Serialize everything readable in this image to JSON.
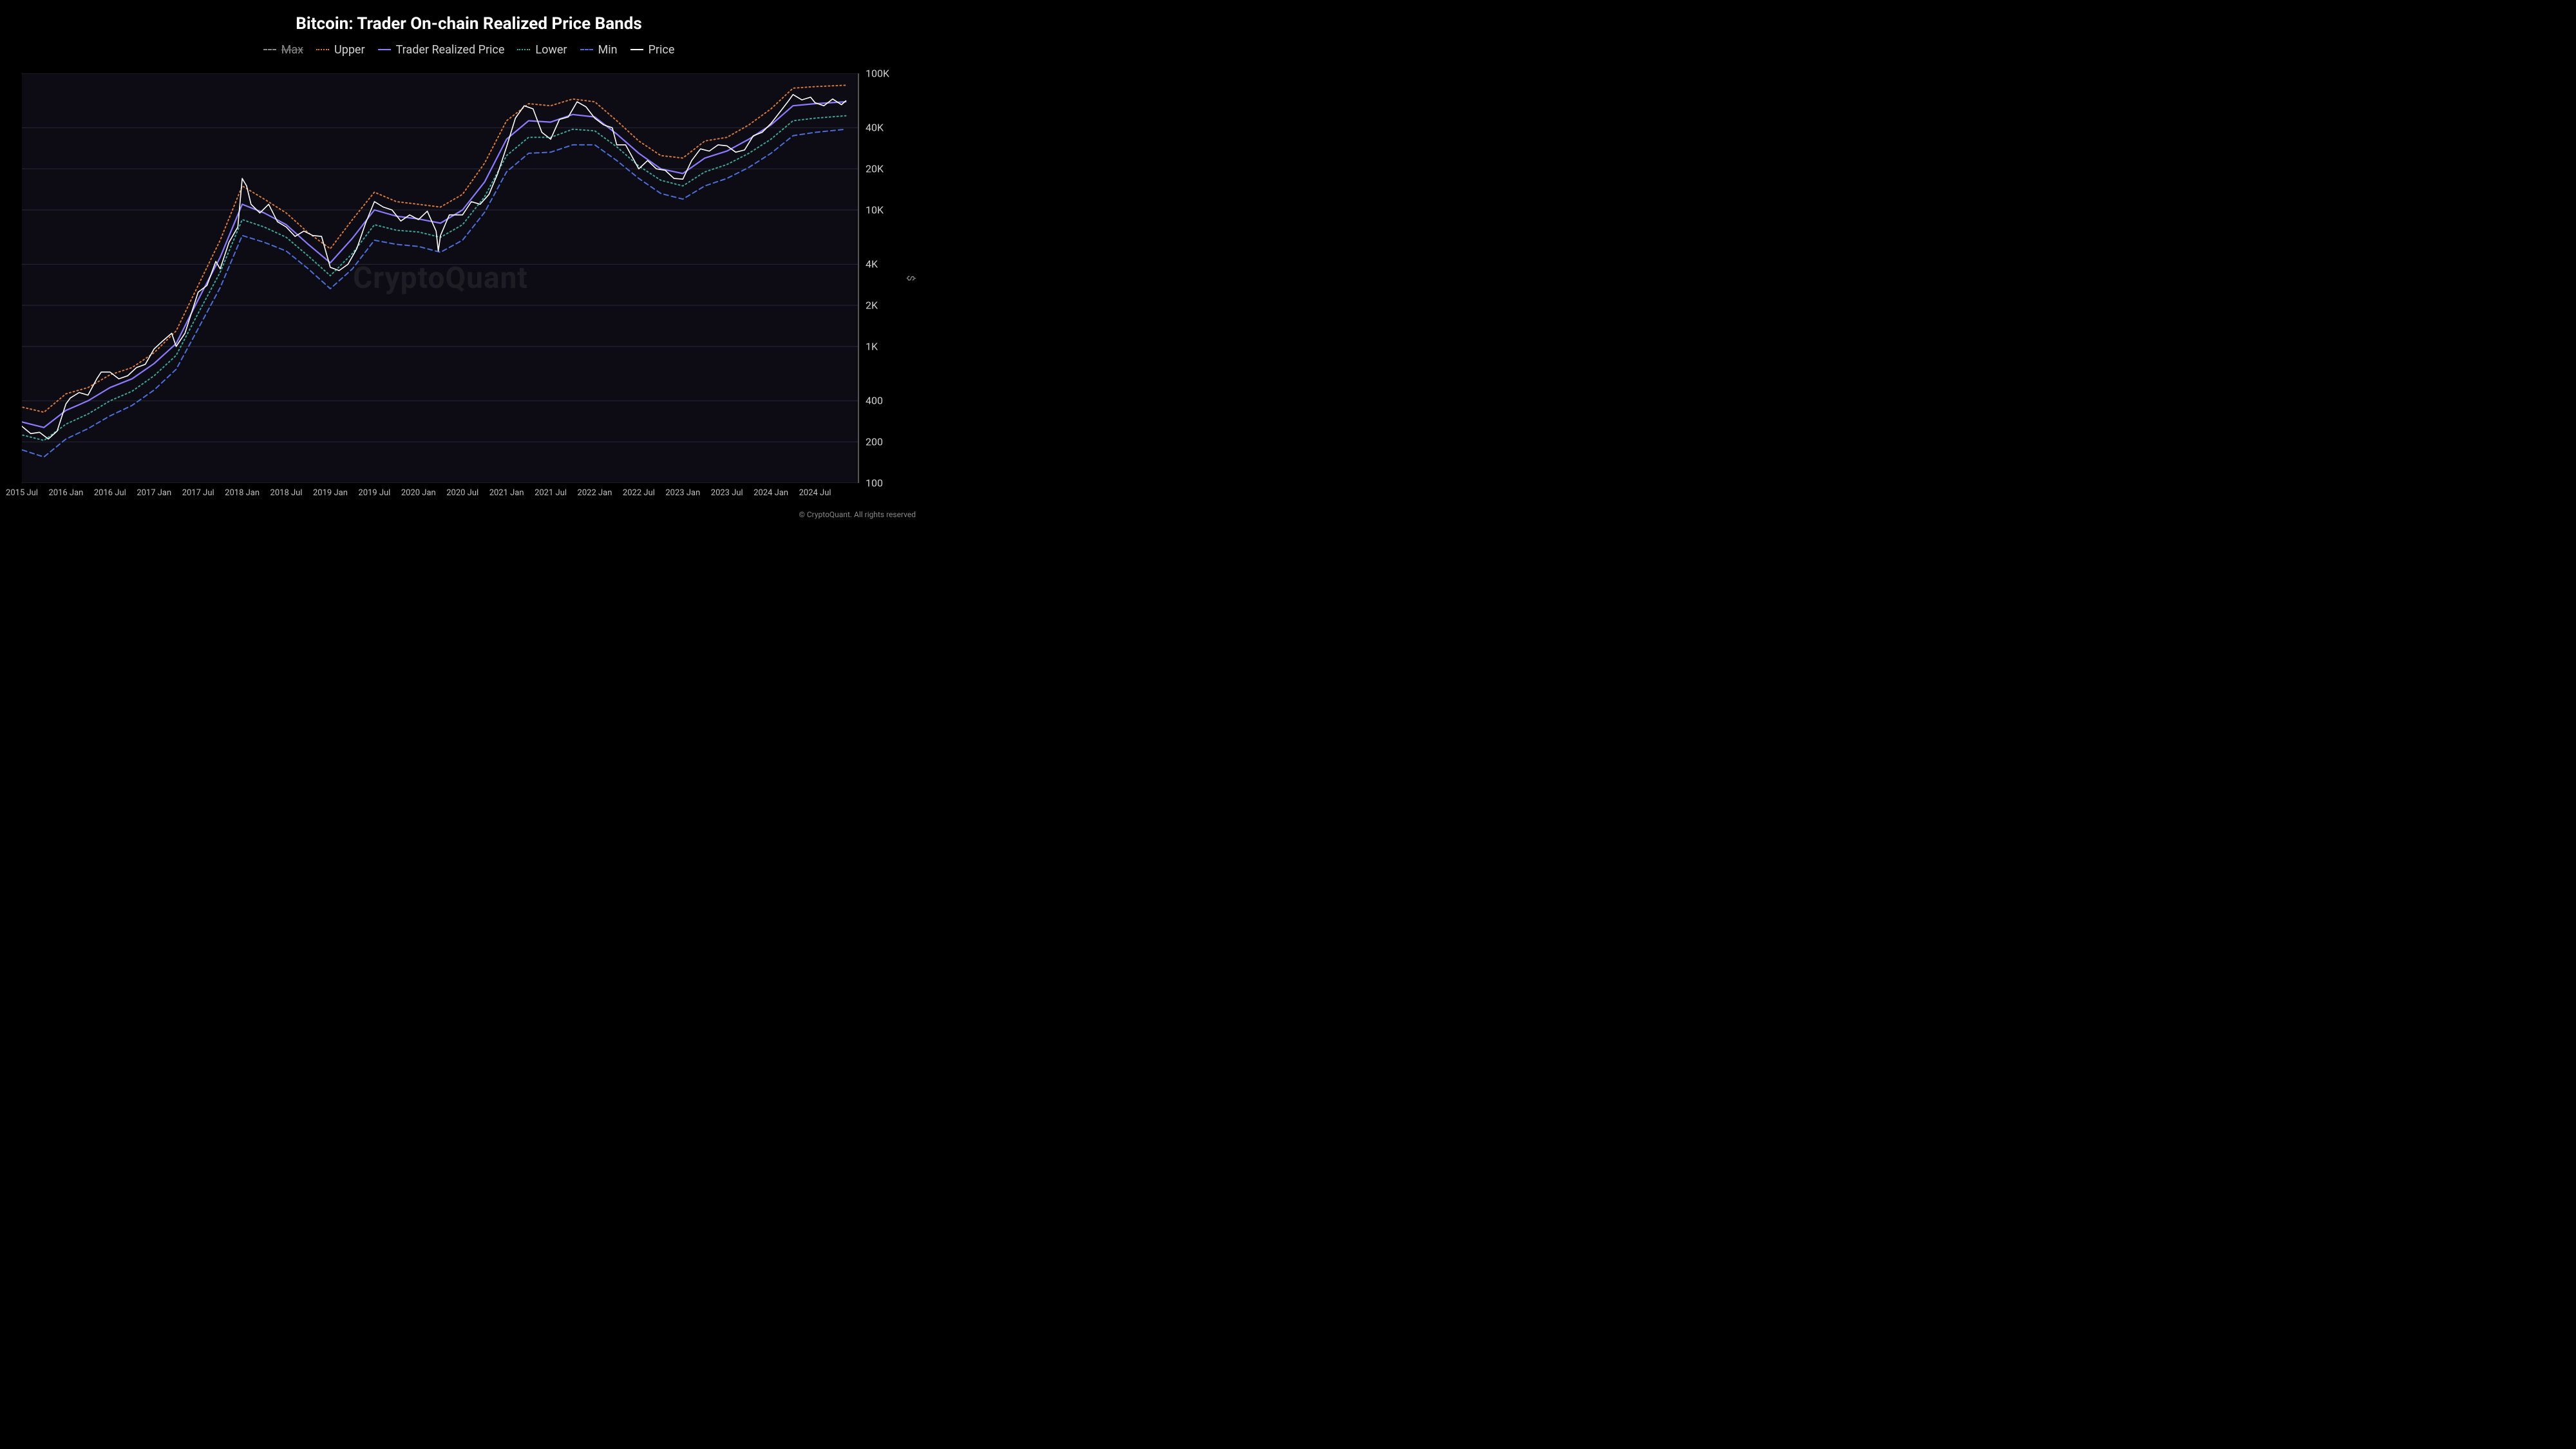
{
  "title": "Bitcoin: Trader On-chain Realized Price Bands",
  "watermark": "CryptoQuant",
  "copyright": "© CryptoQuant. All rights reserved",
  "y_axis_label": "$",
  "background_color": "#000000",
  "plot_background": "#0d0b14",
  "grid_color": "#2a2833",
  "chart": {
    "type": "line",
    "scale": "log",
    "y_min": 100,
    "y_max": 100000,
    "y_ticks": [
      {
        "v": 100,
        "label": "100"
      },
      {
        "v": 200,
        "label": "200"
      },
      {
        "v": 400,
        "label": "400"
      },
      {
        "v": 1000,
        "label": "1K"
      },
      {
        "v": 2000,
        "label": "2K"
      },
      {
        "v": 4000,
        "label": "4K"
      },
      {
        "v": 10000,
        "label": "10K"
      },
      {
        "v": 20000,
        "label": "20K"
      },
      {
        "v": 40000,
        "label": "40K"
      },
      {
        "v": 100000,
        "label": "100K"
      }
    ],
    "x_min": 0,
    "x_max": 19,
    "x_ticks": [
      {
        "v": 0,
        "label": "2015 Jul"
      },
      {
        "v": 1,
        "label": "2016 Jan"
      },
      {
        "v": 2,
        "label": "2016 Jul"
      },
      {
        "v": 3,
        "label": "2017 Jan"
      },
      {
        "v": 4,
        "label": "2017 Jul"
      },
      {
        "v": 5,
        "label": "2018 Jan"
      },
      {
        "v": 6,
        "label": "2018 Jul"
      },
      {
        "v": 7,
        "label": "2019 Jan"
      },
      {
        "v": 8,
        "label": "2019 Jul"
      },
      {
        "v": 9,
        "label": "2020 Jan"
      },
      {
        "v": 10,
        "label": "2020 Jul"
      },
      {
        "v": 11,
        "label": "2021 Jan"
      },
      {
        "v": 12,
        "label": "2021 Jul"
      },
      {
        "v": 13,
        "label": "2022 Jan"
      },
      {
        "v": 14,
        "label": "2022 Jul"
      },
      {
        "v": 15,
        "label": "2023 Jan"
      },
      {
        "v": 16,
        "label": "2023 Jul"
      },
      {
        "v": 17,
        "label": "2024 Jan"
      },
      {
        "v": 18,
        "label": "2024 Jul"
      }
    ],
    "legend": [
      {
        "key": "max",
        "label": "Max",
        "color": "#888888",
        "dash": "6,5",
        "disabled": true,
        "width": 2
      },
      {
        "key": "upper",
        "label": "Upper",
        "color": "#d97a3a",
        "dash": "2,4",
        "disabled": false,
        "width": 2
      },
      {
        "key": "trader",
        "label": "Trader Realized Price",
        "color": "#8a7bff",
        "dash": "",
        "disabled": false,
        "width": 2.2
      },
      {
        "key": "lower",
        "label": "Lower",
        "color": "#3aa89a",
        "dash": "2,4",
        "disabled": false,
        "width": 2
      },
      {
        "key": "min",
        "label": "Min",
        "color": "#4a6fd8",
        "dash": "7,5",
        "disabled": false,
        "width": 2
      },
      {
        "key": "price",
        "label": "Price",
        "color": "#ffffff",
        "dash": "",
        "disabled": false,
        "width": 1.6
      }
    ],
    "series": {
      "upper": [
        [
          -0.5,
          380
        ],
        [
          0,
          360
        ],
        [
          0.5,
          330
        ],
        [
          1,
          450
        ],
        [
          1.5,
          500
        ],
        [
          2,
          620
        ],
        [
          2.5,
          700
        ],
        [
          3,
          900
        ],
        [
          3.5,
          1300
        ],
        [
          4,
          2800
        ],
        [
          4.5,
          6000
        ],
        [
          5,
          15000
        ],
        [
          5.5,
          12000
        ],
        [
          6,
          9500
        ],
        [
          6.5,
          6800
        ],
        [
          7,
          5200
        ],
        [
          7.5,
          8500
        ],
        [
          8,
          13500
        ],
        [
          8.5,
          11500
        ],
        [
          9,
          11000
        ],
        [
          9.5,
          10500
        ],
        [
          10,
          13000
        ],
        [
          10.5,
          22000
        ],
        [
          11,
          45000
        ],
        [
          11.5,
          60000
        ],
        [
          12,
          58000
        ],
        [
          12.5,
          65000
        ],
        [
          13,
          62000
        ],
        [
          13.5,
          45000
        ],
        [
          14,
          32000
        ],
        [
          14.5,
          25000
        ],
        [
          15,
          24000
        ],
        [
          15.5,
          32000
        ],
        [
          16,
          34000
        ],
        [
          16.5,
          42000
        ],
        [
          17,
          55000
        ],
        [
          17.5,
          78000
        ],
        [
          18,
          80000
        ],
        [
          18.7,
          82000
        ]
      ],
      "trader": [
        [
          -0.5,
          300
        ],
        [
          0,
          280
        ],
        [
          0.5,
          255
        ],
        [
          1,
          340
        ],
        [
          1.5,
          400
        ],
        [
          2,
          500
        ],
        [
          2.5,
          580
        ],
        [
          3,
          750
        ],
        [
          3.5,
          1050
        ],
        [
          4,
          2200
        ],
        [
          4.5,
          4500
        ],
        [
          5,
          11000
        ],
        [
          5.5,
          9500
        ],
        [
          6,
          7800
        ],
        [
          6.5,
          5600
        ],
        [
          7,
          4100
        ],
        [
          7.5,
          6200
        ],
        [
          8,
          10000
        ],
        [
          8.5,
          9000
        ],
        [
          9,
          8600
        ],
        [
          9.5,
          8000
        ],
        [
          10,
          10000
        ],
        [
          10.5,
          16000
        ],
        [
          11,
          33000
        ],
        [
          11.5,
          45000
        ],
        [
          12,
          44000
        ],
        [
          12.5,
          50000
        ],
        [
          13,
          48000
        ],
        [
          13.5,
          36000
        ],
        [
          14,
          26000
        ],
        [
          14.5,
          20000
        ],
        [
          15,
          18500
        ],
        [
          15.5,
          24000
        ],
        [
          16,
          27000
        ],
        [
          16.5,
          33000
        ],
        [
          17,
          42000
        ],
        [
          17.5,
          58000
        ],
        [
          18,
          60000
        ],
        [
          18.7,
          62000
        ]
      ],
      "lower": [
        [
          -0.5,
          240
        ],
        [
          0,
          225
        ],
        [
          0.5,
          205
        ],
        [
          1,
          270
        ],
        [
          1.5,
          320
        ],
        [
          2,
          400
        ],
        [
          2.5,
          470
        ],
        [
          3,
          610
        ],
        [
          3.5,
          860
        ],
        [
          4,
          1750
        ],
        [
          4.5,
          3500
        ],
        [
          5,
          8500
        ],
        [
          5.5,
          7500
        ],
        [
          6,
          6300
        ],
        [
          6.5,
          4600
        ],
        [
          7,
          3300
        ],
        [
          7.5,
          4800
        ],
        [
          8,
          7800
        ],
        [
          8.5,
          7100
        ],
        [
          9,
          6900
        ],
        [
          9.5,
          6300
        ],
        [
          10,
          7800
        ],
        [
          10.5,
          12500
        ],
        [
          11,
          25000
        ],
        [
          11.5,
          34000
        ],
        [
          12,
          34000
        ],
        [
          12.5,
          39000
        ],
        [
          13,
          38000
        ],
        [
          13.5,
          29000
        ],
        [
          14,
          21000
        ],
        [
          14.5,
          16500
        ],
        [
          15,
          15000
        ],
        [
          15.5,
          19000
        ],
        [
          16,
          21500
        ],
        [
          16.5,
          26000
        ],
        [
          17,
          33000
        ],
        [
          17.5,
          45000
        ],
        [
          18,
          47000
        ],
        [
          18.7,
          49000
        ]
      ],
      "min": [
        [
          -0.5,
          190
        ],
        [
          0,
          175
        ],
        [
          0.5,
          155
        ],
        [
          1,
          210
        ],
        [
          1.5,
          250
        ],
        [
          2,
          310
        ],
        [
          2.5,
          370
        ],
        [
          3,
          480
        ],
        [
          3.5,
          680
        ],
        [
          4,
          1350
        ],
        [
          4.5,
          2700
        ],
        [
          5,
          6500
        ],
        [
          5.5,
          5800
        ],
        [
          6,
          5000
        ],
        [
          6.5,
          3700
        ],
        [
          7,
          2650
        ],
        [
          7.5,
          3700
        ],
        [
          8,
          6000
        ],
        [
          8.5,
          5600
        ],
        [
          9,
          5400
        ],
        [
          9.5,
          4900
        ],
        [
          10,
          6000
        ],
        [
          10.5,
          9600
        ],
        [
          11,
          19000
        ],
        [
          11.5,
          26000
        ],
        [
          12,
          26500
        ],
        [
          12.5,
          30000
        ],
        [
          13,
          30000
        ],
        [
          13.5,
          23000
        ],
        [
          14,
          17000
        ],
        [
          14.5,
          13200
        ],
        [
          15,
          12000
        ],
        [
          15.5,
          15000
        ],
        [
          16,
          17000
        ],
        [
          16.5,
          20500
        ],
        [
          17,
          26000
        ],
        [
          17.5,
          35000
        ],
        [
          18,
          37000
        ],
        [
          18.7,
          39000
        ]
      ],
      "price": [
        [
          -0.5,
          280
        ],
        [
          -0.3,
          250
        ],
        [
          -0.1,
          290
        ],
        [
          0,
          260
        ],
        [
          0.2,
          230
        ],
        [
          0.4,
          235
        ],
        [
          0.6,
          210
        ],
        [
          0.8,
          240
        ],
        [
          1,
          380
        ],
        [
          1.1,
          420
        ],
        [
          1.3,
          460
        ],
        [
          1.5,
          440
        ],
        [
          1.7,
          580
        ],
        [
          1.8,
          650
        ],
        [
          2,
          650
        ],
        [
          2.2,
          580
        ],
        [
          2.4,
          610
        ],
        [
          2.6,
          700
        ],
        [
          2.8,
          740
        ],
        [
          3,
          960
        ],
        [
          3.2,
          1100
        ],
        [
          3.4,
          1250
        ],
        [
          3.5,
          1000
        ],
        [
          3.7,
          1250
        ],
        [
          4,
          2500
        ],
        [
          4.2,
          2800
        ],
        [
          4.4,
          4200
        ],
        [
          4.5,
          3700
        ],
        [
          4.7,
          5800
        ],
        [
          4.9,
          7500
        ],
        [
          5,
          17000
        ],
        [
          5.1,
          15000
        ],
        [
          5.2,
          11000
        ],
        [
          5.4,
          9500
        ],
        [
          5.6,
          11000
        ],
        [
          5.8,
          8200
        ],
        [
          6,
          7500
        ],
        [
          6.2,
          6400
        ],
        [
          6.4,
          7000
        ],
        [
          6.6,
          6500
        ],
        [
          6.8,
          6400
        ],
        [
          7,
          3800
        ],
        [
          7.2,
          3600
        ],
        [
          7.4,
          4000
        ],
        [
          7.6,
          5200
        ],
        [
          7.8,
          8000
        ],
        [
          8,
          11500
        ],
        [
          8.2,
          10500
        ],
        [
          8.4,
          10000
        ],
        [
          8.6,
          8300
        ],
        [
          8.8,
          9200
        ],
        [
          9,
          8500
        ],
        [
          9.2,
          9800
        ],
        [
          9.4,
          7000
        ],
        [
          9.45,
          5000
        ],
        [
          9.5,
          6500
        ],
        [
          9.7,
          9200
        ],
        [
          10,
          9200
        ],
        [
          10.2,
          11500
        ],
        [
          10.4,
          11000
        ],
        [
          10.6,
          13000
        ],
        [
          10.8,
          18500
        ],
        [
          11,
          29000
        ],
        [
          11.2,
          47000
        ],
        [
          11.4,
          58000
        ],
        [
          11.6,
          55000
        ],
        [
          11.8,
          37000
        ],
        [
          12,
          33000
        ],
        [
          12.2,
          46000
        ],
        [
          12.4,
          48000
        ],
        [
          12.6,
          62000
        ],
        [
          12.8,
          57000
        ],
        [
          13,
          47000
        ],
        [
          13.2,
          42000
        ],
        [
          13.4,
          40000
        ],
        [
          13.5,
          30000
        ],
        [
          13.7,
          30000
        ],
        [
          14,
          20000
        ],
        [
          14.2,
          23000
        ],
        [
          14.4,
          20000
        ],
        [
          14.6,
          19500
        ],
        [
          14.8,
          17000
        ],
        [
          15,
          16800
        ],
        [
          15.2,
          23000
        ],
        [
          15.4,
          28000
        ],
        [
          15.6,
          27000
        ],
        [
          15.8,
          30000
        ],
        [
          16,
          29500
        ],
        [
          16.2,
          26500
        ],
        [
          16.4,
          27500
        ],
        [
          16.6,
          35000
        ],
        [
          16.8,
          37000
        ],
        [
          17,
          43000
        ],
        [
          17.2,
          52000
        ],
        [
          17.4,
          63000
        ],
        [
          17.5,
          70000
        ],
        [
          17.7,
          64000
        ],
        [
          17.9,
          67000
        ],
        [
          18,
          61000
        ],
        [
          18.2,
          58000
        ],
        [
          18.4,
          65000
        ],
        [
          18.6,
          59000
        ],
        [
          18.7,
          63000
        ]
      ]
    }
  }
}
